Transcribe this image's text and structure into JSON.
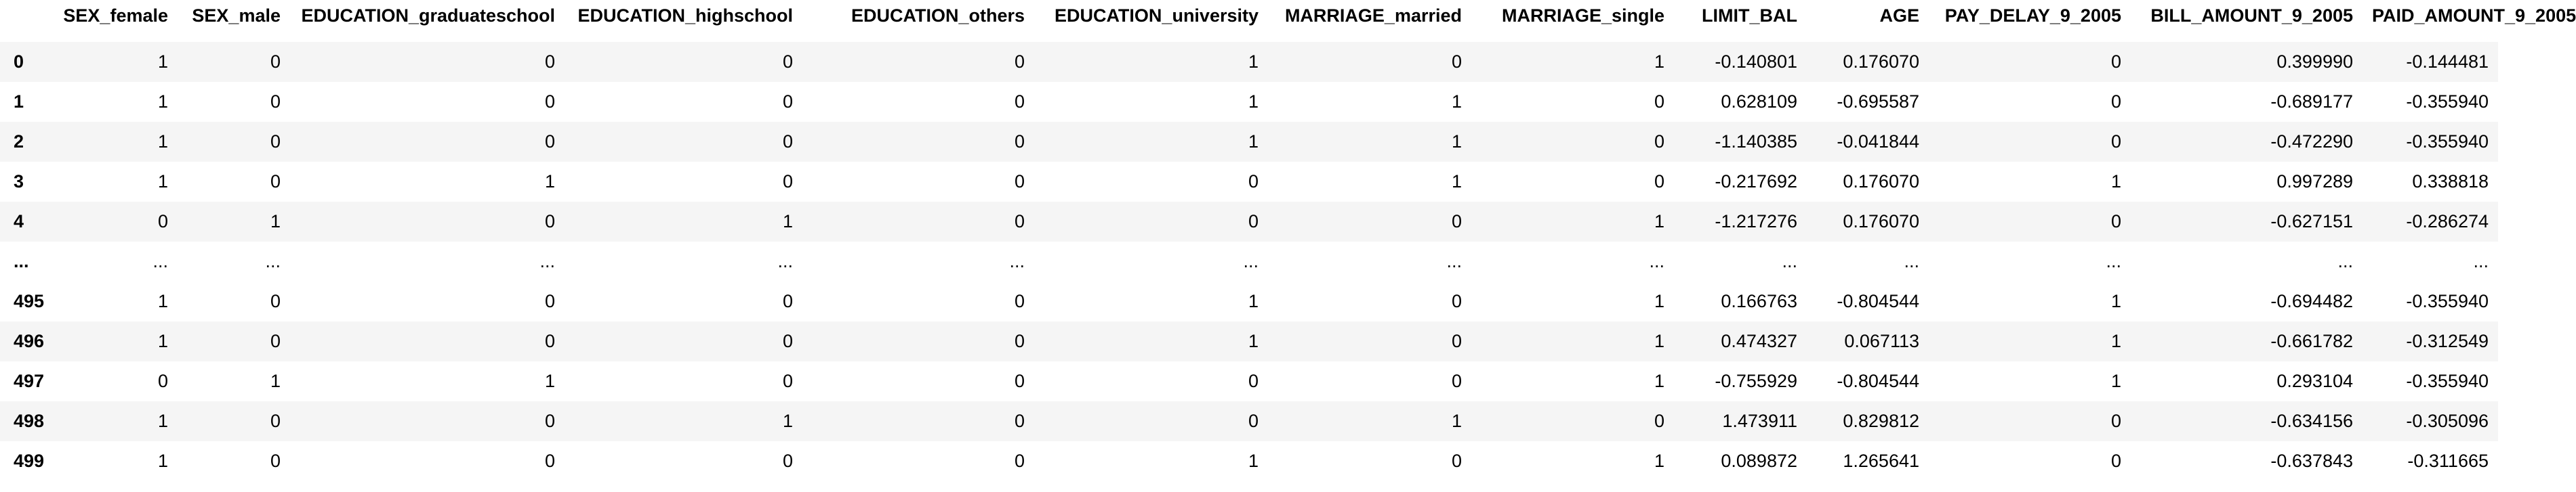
{
  "table": {
    "index_header": "",
    "columns": [
      "SEX_female",
      "SEX_male",
      "EDUCATION_graduateschool",
      "EDUCATION_highschool",
      "EDUCATION_others",
      "EDUCATION_university",
      "MARRIAGE_married",
      "MARRIAGE_single",
      "LIMIT_BAL",
      "AGE",
      "PAY_DELAY_9_2005",
      "BILL_AMOUNT_9_2005",
      "PAID_AMOUNT_9_2005"
    ],
    "rows": [
      {
        "index": "0",
        "cells": [
          "1",
          "0",
          "0",
          "0",
          "0",
          "1",
          "0",
          "1",
          "-0.140801",
          "0.176070",
          "0",
          "0.399990",
          "-0.144481"
        ]
      },
      {
        "index": "1",
        "cells": [
          "1",
          "0",
          "0",
          "0",
          "0",
          "1",
          "1",
          "0",
          "0.628109",
          "-0.695587",
          "0",
          "-0.689177",
          "-0.355940"
        ]
      },
      {
        "index": "2",
        "cells": [
          "1",
          "0",
          "0",
          "0",
          "0",
          "1",
          "1",
          "0",
          "-1.140385",
          "-0.041844",
          "0",
          "-0.472290",
          "-0.355940"
        ]
      },
      {
        "index": "3",
        "cells": [
          "1",
          "0",
          "1",
          "0",
          "0",
          "0",
          "1",
          "0",
          "-0.217692",
          "0.176070",
          "1",
          "0.997289",
          "0.338818"
        ]
      },
      {
        "index": "4",
        "cells": [
          "0",
          "1",
          "0",
          "1",
          "0",
          "0",
          "0",
          "1",
          "-1.217276",
          "0.176070",
          "0",
          "-0.627151",
          "-0.286274"
        ]
      },
      {
        "index": "...",
        "cells": [
          "...",
          "...",
          "...",
          "...",
          "...",
          "...",
          "...",
          "...",
          "...",
          "...",
          "...",
          "...",
          "..."
        ]
      },
      {
        "index": "495",
        "cells": [
          "1",
          "0",
          "0",
          "0",
          "0",
          "1",
          "0",
          "1",
          "0.166763",
          "-0.804544",
          "1",
          "-0.694482",
          "-0.355940"
        ]
      },
      {
        "index": "496",
        "cells": [
          "1",
          "0",
          "0",
          "0",
          "0",
          "1",
          "0",
          "1",
          "0.474327",
          "0.067113",
          "1",
          "-0.661782",
          "-0.312549"
        ]
      },
      {
        "index": "497",
        "cells": [
          "0",
          "1",
          "1",
          "0",
          "0",
          "0",
          "0",
          "1",
          "-0.755929",
          "-0.804544",
          "1",
          "0.293104",
          "-0.355940"
        ]
      },
      {
        "index": "498",
        "cells": [
          "1",
          "0",
          "0",
          "1",
          "0",
          "0",
          "1",
          "0",
          "1.473911",
          "0.829812",
          "0",
          "-0.634156",
          "-0.305096"
        ]
      },
      {
        "index": "499",
        "cells": [
          "1",
          "0",
          "0",
          "0",
          "0",
          "1",
          "0",
          "1",
          "0.089872",
          "1.265641",
          "0",
          "-0.637843",
          "-0.311665"
        ]
      }
    ]
  }
}
